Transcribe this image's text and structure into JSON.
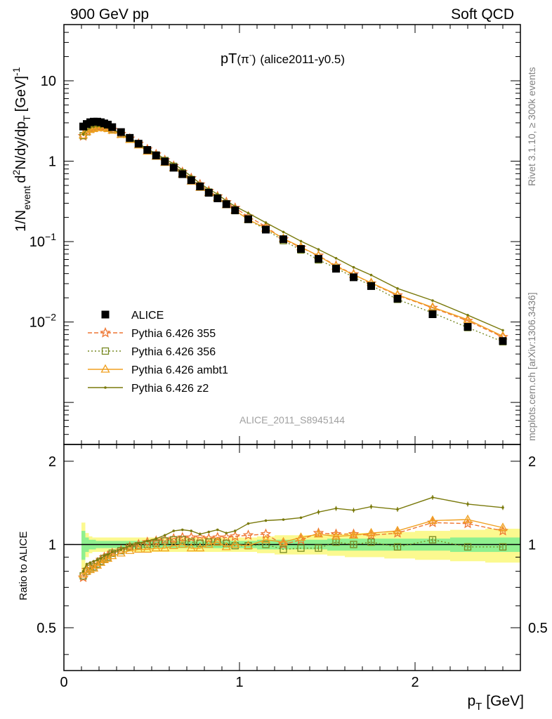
{
  "header": {
    "left": "900 GeV pp",
    "right": "Soft QCD"
  },
  "side": {
    "rivet": "Rivet 3.1.10, ≥ 300k events",
    "url": "mcplots.cern.ch [arXiv:1306.3436]"
  },
  "chart_data": {
    "type": "scatter",
    "title_main": "pT",
    "title_sym": "(π",
    "title_sup": "-",
    "title_close": ")",
    "title_sub": "(alice2011-y0.5)",
    "watermark": "ALICE_2011_S8945144",
    "xlabel": "p",
    "xlabel_sub": "T",
    "xlabel_unit": "[GeV]",
    "ylabel_pre": "1/N",
    "ylabel_pre_sub": "event",
    "ylabel_d": "d",
    "ylabel_d_sup": "2",
    "ylabel_mid": "N/dy/dp",
    "ylabel_mid_sub": "T",
    "ylabel_unit": "[GeV]",
    "ylabel_unit_sup": "-1",
    "ratio_ylabel": "Ratio to ALICE",
    "xlim": [
      0,
      2.6
    ],
    "ylim_log": [
      0.0003,
      50
    ],
    "ratio_ylim": [
      0.35,
      2.3
    ],
    "x_ticks": [
      {
        "v": 0,
        "label": "0"
      },
      {
        "v": 1,
        "label": "1"
      },
      {
        "v": 2,
        "label": "2"
      }
    ],
    "y_ticks": [
      {
        "base": "10",
        "exp": "",
        "plain": "10",
        "v": 10
      },
      {
        "base": "1",
        "exp": "",
        "plain": "1",
        "v": 1
      },
      {
        "base": "10",
        "exp": "−1",
        "plain": "",
        "v": 0.1
      },
      {
        "base": "10",
        "exp": "−2",
        "plain": "",
        "v": 0.01
      }
    ],
    "ratio_ticks": [
      {
        "v": 2,
        "label": "2"
      },
      {
        "v": 1,
        "label": "1"
      },
      {
        "v": 0.5,
        "label": "0.5"
      }
    ],
    "x": [
      0.11,
      0.13,
      0.15,
      0.17,
      0.19,
      0.21,
      0.23,
      0.25,
      0.275,
      0.325,
      0.375,
      0.425,
      0.475,
      0.525,
      0.575,
      0.625,
      0.675,
      0.725,
      0.775,
      0.825,
      0.875,
      0.925,
      0.975,
      1.05,
      1.15,
      1.25,
      1.35,
      1.45,
      1.55,
      1.65,
      1.75,
      1.9,
      2.1,
      2.3,
      2.5
    ],
    "data_values": [
      2.7,
      2.9,
      3.05,
      3.1,
      3.1,
      3.05,
      2.95,
      2.85,
      2.65,
      2.3,
      1.95,
      1.65,
      1.38,
      1.18,
      0.99,
      0.83,
      0.69,
      0.58,
      0.485,
      0.405,
      0.345,
      0.292,
      0.245,
      0.19,
      0.141,
      0.107,
      0.081,
      0.061,
      0.046,
      0.036,
      0.028,
      0.0195,
      0.0125,
      0.0087,
      0.0058
    ],
    "band_stat_halfwidth": [
      0.12,
      0.06,
      0.04,
      0.04,
      0.03,
      0.03,
      0.03,
      0.03,
      0.03,
      0.03,
      0.03,
      0.03,
      0.03,
      0.03,
      0.03,
      0.03,
      0.03,
      0.03,
      0.03,
      0.03,
      0.03,
      0.03,
      0.03,
      0.03,
      0.04,
      0.04,
      0.04,
      0.04,
      0.05,
      0.05,
      0.05,
      0.05,
      0.05,
      0.06,
      0.06
    ],
    "band_sys_halfwidth": [
      0.2,
      0.1,
      0.07,
      0.06,
      0.06,
      0.06,
      0.06,
      0.06,
      0.06,
      0.06,
      0.06,
      0.06,
      0.06,
      0.06,
      0.06,
      0.06,
      0.06,
      0.06,
      0.06,
      0.06,
      0.06,
      0.06,
      0.06,
      0.06,
      0.07,
      0.08,
      0.08,
      0.08,
      0.09,
      0.1,
      0.1,
      0.11,
      0.12,
      0.13,
      0.14
    ],
    "series": [
      {
        "name": "ALICE",
        "legend": "ALICE",
        "color": "#000000",
        "marker": "square",
        "dash": "",
        "is_data": true,
        "ratio": []
      },
      {
        "name": "Pythia 6.426 355",
        "legend": "Pythia 6.426 355",
        "color": "#ee7733",
        "marker": "star",
        "dash": "6,3",
        "ratio": [
          0.76,
          0.81,
          0.83,
          0.84,
          0.86,
          0.88,
          0.9,
          0.91,
          0.93,
          0.95,
          0.98,
          1.0,
          1.02,
          1.03,
          1.04,
          1.05,
          1.06,
          1.06,
          1.06,
          1.05,
          1.06,
          1.06,
          1.07,
          1.08,
          1.09,
          1.0,
          1.04,
          1.1,
          1.09,
          1.09,
          1.08,
          1.1,
          1.2,
          1.19,
          1.12
        ]
      },
      {
        "name": "Pythia 6.426 356",
        "legend": "Pythia 6.426 356",
        "color": "#778822",
        "marker": "square-open",
        "dash": "2,3",
        "ratio": [
          0.77,
          0.8,
          0.82,
          0.83,
          0.85,
          0.87,
          0.89,
          0.9,
          0.93,
          0.95,
          0.98,
          0.99,
          1.0,
          1.01,
          1.03,
          1.04,
          1.04,
          1.02,
          1.01,
          1.02,
          1.02,
          1.01,
          0.99,
          0.99,
          1.0,
          0.96,
          0.97,
          0.97,
          1.02,
          1.0,
          1.02,
          0.98,
          1.04,
          0.98,
          0.98
        ]
      },
      {
        "name": "Pythia 6.426 ambt1",
        "legend": "Pythia 6.426 ambt1",
        "color": "#f0a020",
        "marker": "triangle-open",
        "dash": "",
        "ratio": [
          0.78,
          0.8,
          0.81,
          0.82,
          0.84,
          0.86,
          0.88,
          0.89,
          0.91,
          0.93,
          0.95,
          0.96,
          0.96,
          0.97,
          0.97,
          0.99,
          1.0,
          0.97,
          0.97,
          1.0,
          1.02,
          0.98,
          1.0,
          0.99,
          1.04,
          1.02,
          1.06,
          1.09,
          1.07,
          1.08,
          1.1,
          1.12,
          1.22,
          1.23,
          1.15
        ]
      },
      {
        "name": "Pythia 6.426 z2",
        "legend": "Pythia 6.426 z2",
        "color": "#7a7a0c",
        "marker": "dot",
        "dash": "",
        "ratio": [
          0.8,
          0.85,
          0.86,
          0.87,
          0.88,
          0.89,
          0.91,
          0.92,
          0.94,
          0.96,
          0.99,
          1.01,
          1.03,
          1.05,
          1.08,
          1.12,
          1.13,
          1.12,
          1.09,
          1.11,
          1.13,
          1.1,
          1.12,
          1.19,
          1.22,
          1.23,
          1.25,
          1.31,
          1.35,
          1.33,
          1.37,
          1.34,
          1.48,
          1.4,
          1.36
        ]
      }
    ]
  }
}
